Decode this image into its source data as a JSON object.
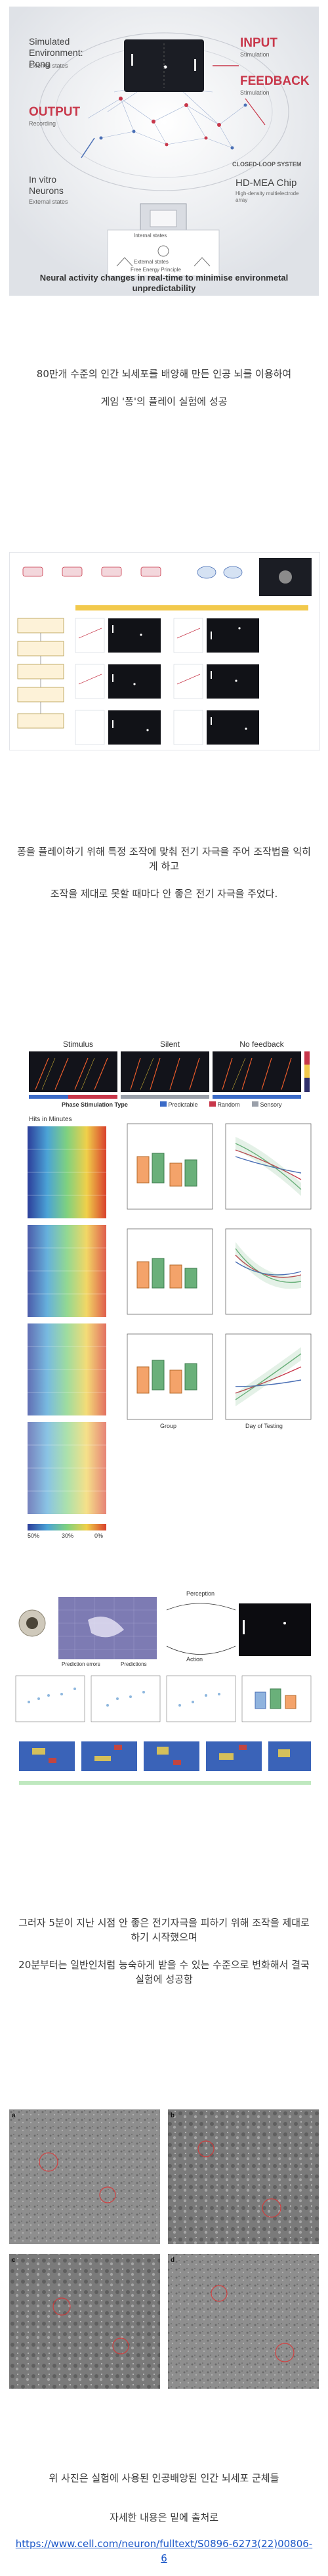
{
  "figure1": {
    "labels": {
      "sim_env": "Simulated Environment: Pong",
      "ext_states": "External states",
      "input": "INPUT",
      "stimulation": "Stimulation",
      "feedback": "FEEDBACK",
      "stimulation2": "Stimulation",
      "output": "OUTPUT",
      "recording": "Recording",
      "closed_loop": "CLOSED-LOOP SYSTEM",
      "in_vitro": "In vitro Neurons",
      "ext_states2": "External states",
      "internal": "Internal states",
      "ext_states3": "External states",
      "fep": "Free Energy Principle",
      "hdmea": "HD-MEA Chip",
      "hdmea_sub": "High-density multielectrode array"
    },
    "caption": "Neural activity changes in real-time to minimise environmetal unpredictability"
  },
  "para1": [
    "80만개 수준의 인간 뇌세포를 배양해 만든 인공 뇌를 이용하여",
    "게임 '퐁'의 플레이 실험에 성공"
  ],
  "para2": [
    "퐁을 플레이하기 위해 특정 조작에 맞춰 전기 자극을 주어 조작법을 익히게 하고",
    "조작을 제대로 못할 때마다 안 좋은 전기 자극을 주었다."
  ],
  "figure3": {
    "panels": [
      "Stimulus",
      "Silent",
      "No feedback"
    ],
    "legend_title": "Phase Stimulation Type",
    "legend": [
      "Predictable",
      "Random",
      "Sensory"
    ],
    "hits_title": "Hits in Minutes",
    "colorbar": [
      "50%",
      "30%",
      "0%"
    ],
    "x_label": "Group",
    "day_label": "Day of Testing"
  },
  "figure4": {
    "labels": [
      "Perception",
      "Action",
      "Prediction errors",
      "Predictions"
    ]
  },
  "para3": [
    "그러자 5분이 지난 시점 안 좋은 전기자극을 피하기 위해 조작을 제대로 하기 시작했으며",
    "20분부터는 일반인처럼 능숙하게 받을 수 있는 수준으로 변화해서 결국 실험에 성공함"
  ],
  "para4": [
    "위 사진은 실험에 사용된 인공배양된 인간 뇌세포 군체들"
  ],
  "para5": {
    "intro": "자세한 내용은 밑에 출처로",
    "link": "https://www.cell.com/neuron/fulltext/S0896-6273(22)00806-6"
  },
  "colors": {
    "accent_red": "#c8374a",
    "link_blue": "#1a56c8",
    "dark_panel": "#1b1d24"
  }
}
